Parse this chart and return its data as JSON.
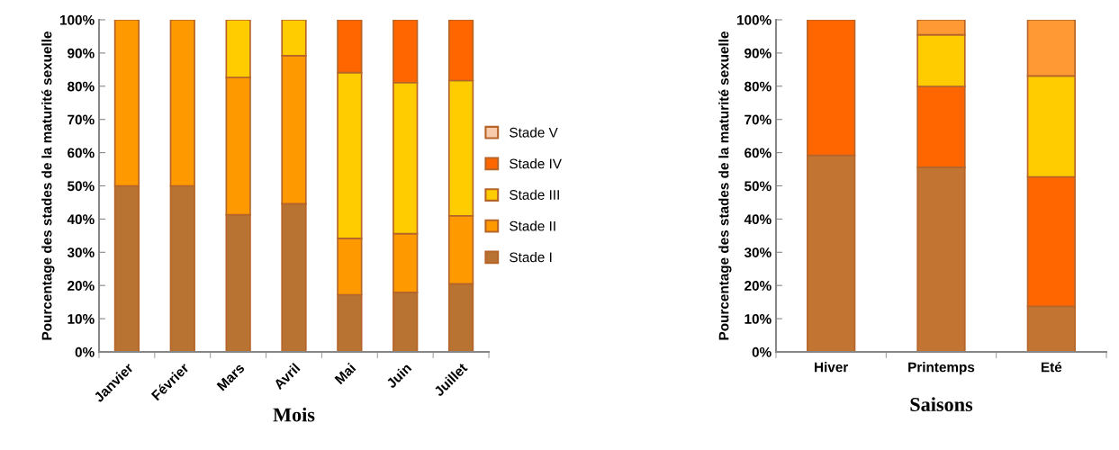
{
  "chart_data": [
    {
      "type": "bar",
      "stacked": true,
      "xlabel": "Mois",
      "ylabel": "Pourcentage des stades de la maturité sexuelle",
      "categories": [
        "Janvier",
        "Février",
        "Mars",
        "Avril",
        "Mai",
        "Juin",
        "Juillet"
      ],
      "ylim": [
        0,
        100
      ],
      "yticks": [
        {
          "value": 0,
          "label": "0%"
        },
        {
          "value": 10,
          "label": "10%"
        },
        {
          "value": 20,
          "label": "20%"
        },
        {
          "value": 30,
          "label": "30%"
        },
        {
          "value": 40,
          "label": "40%"
        },
        {
          "value": 50,
          "label": "50%"
        },
        {
          "value": 60,
          "label": "60%"
        },
        {
          "value": 70,
          "label": "70%"
        },
        {
          "value": 80,
          "label": "80%"
        },
        {
          "value": 90,
          "label": "90%"
        },
        {
          "value": 100,
          "label": "100%"
        }
      ],
      "grid": false,
      "legend": "right",
      "series": [
        {
          "name": "Stade I",
          "color": "#b87333",
          "values": [
            50,
            50,
            41.3,
            44.6,
            17.2,
            17.9,
            20.5
          ]
        },
        {
          "name": "Stade II",
          "color": "#ff9900",
          "values": [
            50,
            50,
            41.3,
            44.6,
            17.0,
            17.7,
            20.5
          ]
        },
        {
          "name": "Stade III",
          "color": "#ffcc00",
          "values": [
            null,
            null,
            17.4,
            10.8,
            49.9,
            45.5,
            40.7
          ]
        },
        {
          "name": "Stade IV",
          "color": "#ff6600",
          "values": [
            null,
            null,
            null,
            null,
            15.9,
            18.9,
            18.3
          ]
        },
        {
          "name": "Stade V",
          "color": "#f8cbad",
          "values": [
            null,
            null,
            null,
            null,
            null,
            null,
            null
          ]
        }
      ]
    },
    {
      "type": "bar",
      "stacked": true,
      "xlabel": "Saisons",
      "ylabel": "Pourcentage des stades de la maturité sexuelle",
      "categories": [
        "Hiver",
        "Printemps",
        "Eté"
      ],
      "ylim": [
        0,
        100
      ],
      "yticks": [
        {
          "value": 0,
          "label": "0%"
        },
        {
          "value": 10,
          "label": "10%"
        },
        {
          "value": 20,
          "label": "20%"
        },
        {
          "value": 30,
          "label": "30%"
        },
        {
          "value": 40,
          "label": "40%"
        },
        {
          "value": 50,
          "label": "50%"
        },
        {
          "value": 60,
          "label": "60%"
        },
        {
          "value": 70,
          "label": "70%"
        },
        {
          "value": 80,
          "label": "80%"
        },
        {
          "value": 90,
          "label": "90%"
        },
        {
          "value": 100,
          "label": "100%"
        }
      ],
      "grid": false,
      "legend": false,
      "series": [
        {
          "color": "#c27532",
          "values": [
            59.2,
            55.6,
            13.7
          ]
        },
        {
          "color": "#ff6600",
          "values": [
            40.8,
            24.3,
            39.0
          ]
        },
        {
          "color": "#ffcc00",
          "values": [
            null,
            15.6,
            30.4
          ]
        },
        {
          "color": "#ff9933",
          "values": [
            null,
            4.5,
            16.9
          ]
        }
      ]
    }
  ]
}
